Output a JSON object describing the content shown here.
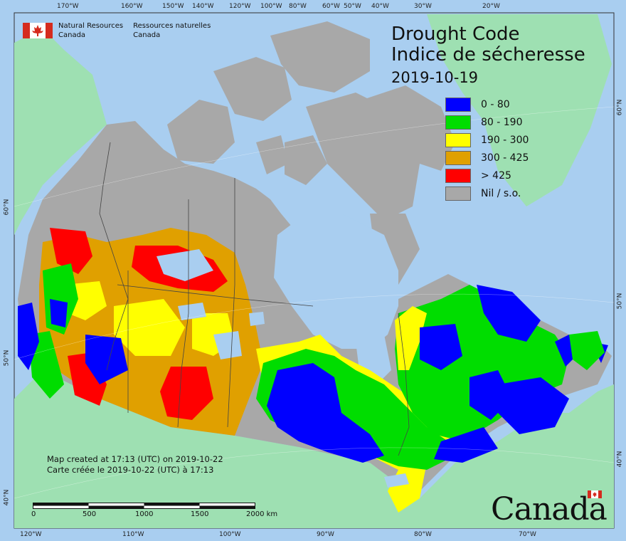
{
  "header": {
    "nrcan_en_1": "Natural Resources",
    "nrcan_en_2": "Canada",
    "nrcan_fr_1": "Ressources naturelles",
    "nrcan_fr_2": "Canada"
  },
  "title": {
    "line1": "Drought Code",
    "line2": "Indice de sécheresse",
    "date": "2019-10-19"
  },
  "legend": [
    {
      "label": "0 - 80",
      "color": "#0000ff"
    },
    {
      "label": "80 - 190",
      "color": "#00dd00"
    },
    {
      "label": "190 - 300",
      "color": "#ffff00"
    },
    {
      "label": "300 - 425",
      "color": "#e0a000"
    },
    {
      "label": "> 425",
      "color": "#ff0000"
    },
    {
      "label": "Nil / s.o.",
      "color": "#a8a8a8"
    }
  ],
  "colors": {
    "ocean": "#a9cef0",
    "foreign_land": "#9ee0b2",
    "nil": "#a8a8a8",
    "border": "#444444",
    "flag_red": "#d52b1e"
  },
  "ticks": {
    "top": [
      "170°W",
      "160°W",
      "150°W",
      "140°W",
      "120°W",
      "100°W",
      "80°W",
      "60°W",
      "50°W",
      "40°W",
      "30°W",
      "20°W"
    ],
    "bottom": [
      "120°W",
      "110°W",
      "100°W",
      "90°W",
      "80°W",
      "70°W"
    ],
    "left": [
      "60°N",
      "50°N",
      "40°N"
    ],
    "right": [
      "60°N",
      "50°N",
      "40°N"
    ]
  },
  "footer": {
    "created_en": "Map created at 17:13 (UTC) on 2019-10-22",
    "created_fr": "Carte créée le 2019-10-22 (UTC) à 17:13"
  },
  "scale": {
    "labels": [
      "0",
      "500",
      "1000",
      "1500",
      "2000"
    ],
    "unit": "km"
  },
  "wordmark": "Canada"
}
